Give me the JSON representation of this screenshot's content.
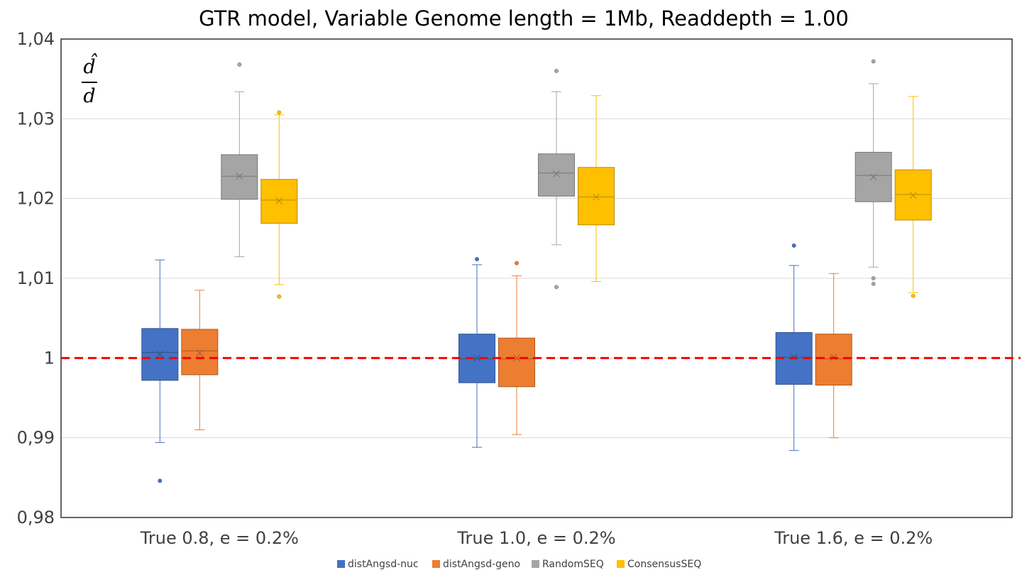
{
  "chart_data": {
    "type": "box",
    "title": "GTR model, Variable Genome length = 1Mb, Readdepth = 1.00",
    "annotation": {
      "numerator": "d̂",
      "denominator": "d"
    },
    "ylim": [
      0.98,
      1.04
    ],
    "yticks": [
      0.98,
      0.99,
      1,
      1.01,
      1.02,
      1.03,
      1.04
    ],
    "ytick_labels": [
      "0,98",
      "0,99",
      "1",
      "1,01",
      "1,02",
      "1,03",
      "1,04"
    ],
    "grid": true,
    "reference_line": {
      "y": 1.0,
      "color": "#ff0000",
      "style": "dashed"
    },
    "categories": [
      "True 0.8, e = 0.2%",
      "True 1.0, e = 0.2%",
      "True 1.6, e = 0.2%"
    ],
    "legend_position": "bottom",
    "series": [
      {
        "name": "distAngsd-nuc",
        "color": "#4472c4",
        "boxes": [
          {
            "min": 0.9894,
            "q1": 0.9972,
            "median": 1.0007,
            "q3": 1.0037,
            "max": 1.0123,
            "mean": 1.0005,
            "outliers": [
              0.9846
            ]
          },
          {
            "min": 0.9888,
            "q1": 0.9969,
            "median": 0.9999,
            "q3": 1.003,
            "max": 1.0117,
            "mean": 1.0,
            "outliers": [
              1.0124
            ]
          },
          {
            "min": 0.9884,
            "q1": 0.9967,
            "median": 1.0001,
            "q3": 1.0032,
            "max": 1.0116,
            "mean": 1.0001,
            "outliers": [
              1.0141
            ]
          }
        ]
      },
      {
        "name": "distAngsd-geno",
        "color": "#ed7d31",
        "boxes": [
          {
            "min": 0.991,
            "q1": 0.9979,
            "median": 1.0009,
            "q3": 1.0036,
            "max": 1.0085,
            "mean": 1.0006,
            "outliers": []
          },
          {
            "min": 0.9904,
            "q1": 0.9964,
            "median": 0.9999,
            "q3": 1.0025,
            "max": 1.0103,
            "mean": 1.0,
            "outliers": [
              1.0119
            ]
          },
          {
            "min": 0.99,
            "q1": 0.9966,
            "median": 0.9999,
            "q3": 1.003,
            "max": 1.0106,
            "mean": 1.0001,
            "outliers": []
          }
        ]
      },
      {
        "name": "RandomSEQ",
        "color": "#a5a5a5",
        "boxes": [
          {
            "min": 1.0127,
            "q1": 1.0199,
            "median": 1.0228,
            "q3": 1.0255,
            "max": 1.0334,
            "mean": 1.0228,
            "outliers": [
              1.0368
            ]
          },
          {
            "min": 1.0142,
            "q1": 1.0203,
            "median": 1.0232,
            "q3": 1.0256,
            "max": 1.0334,
            "mean": 1.0231,
            "outliers": [
              1.0089,
              1.036
            ]
          },
          {
            "min": 1.0114,
            "q1": 1.0196,
            "median": 1.0229,
            "q3": 1.0258,
            "max": 1.0344,
            "mean": 1.0227,
            "outliers": [
              1.0093,
              1.01,
              1.0372
            ]
          }
        ]
      },
      {
        "name": "ConsensusSEQ",
        "color": "#ffc000",
        "boxes": [
          {
            "min": 1.0092,
            "q1": 1.0169,
            "median": 1.0198,
            "q3": 1.0224,
            "max": 1.0305,
            "mean": 1.0197,
            "outliers": [
              1.0077,
              1.0308
            ]
          },
          {
            "min": 1.0096,
            "q1": 1.0167,
            "median": 1.0202,
            "q3": 1.0239,
            "max": 1.0329,
            "mean": 1.0202,
            "outliers": []
          },
          {
            "min": 1.0082,
            "q1": 1.0173,
            "median": 1.0205,
            "q3": 1.0236,
            "max": 1.0328,
            "mean": 1.0204,
            "outliers": [
              1.0078
            ]
          }
        ]
      }
    ]
  }
}
